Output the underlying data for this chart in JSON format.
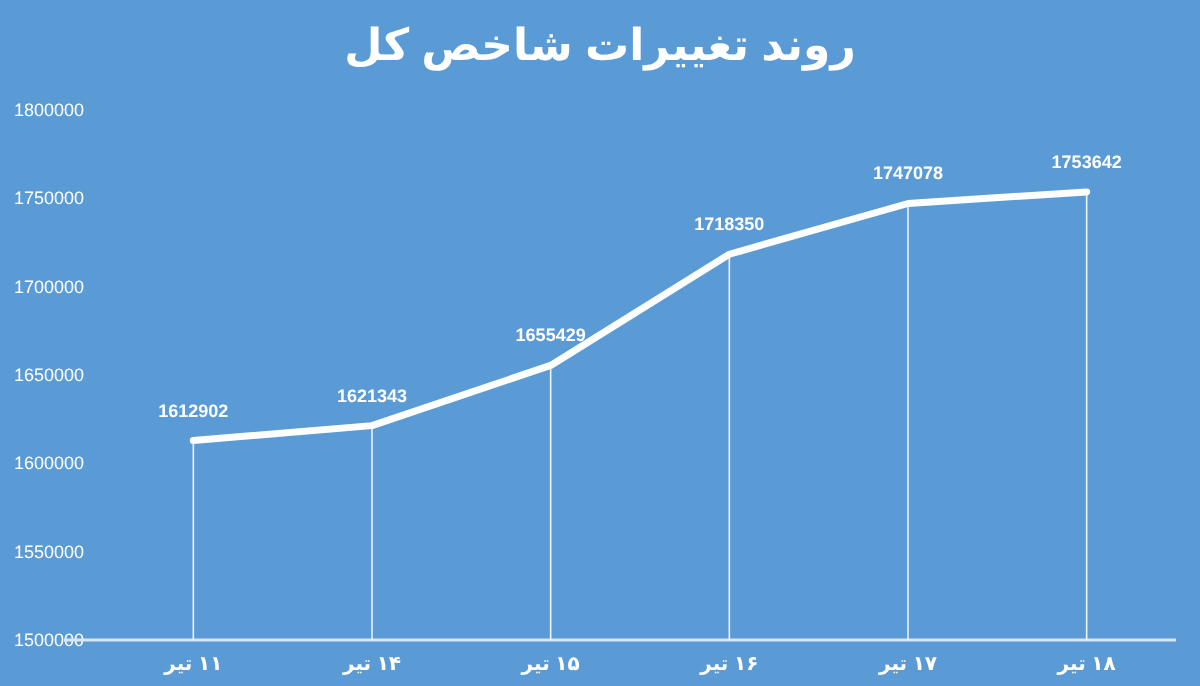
{
  "chart_data": {
    "type": "line",
    "title": "روند تغییرات شاخص کل",
    "categories": [
      "۱۱ تیر",
      "۱۴ تیر",
      "۱۵ تیر",
      "۱۶ تیر",
      "۱۷ تیر",
      "۱۸ تیر"
    ],
    "series": [
      {
        "color": "#ffffff",
        "values": [
          1612902,
          1621343,
          1655429,
          1718350,
          1747078,
          1753642
        ]
      }
    ],
    "ylim": [
      1500000,
      1800000
    ],
    "yticks": [
      1500000,
      1550000,
      1600000,
      1650000,
      1700000,
      1750000,
      1800000
    ],
    "data_labels": true,
    "grid": "x",
    "marker": "none",
    "line_style": "solid"
  }
}
